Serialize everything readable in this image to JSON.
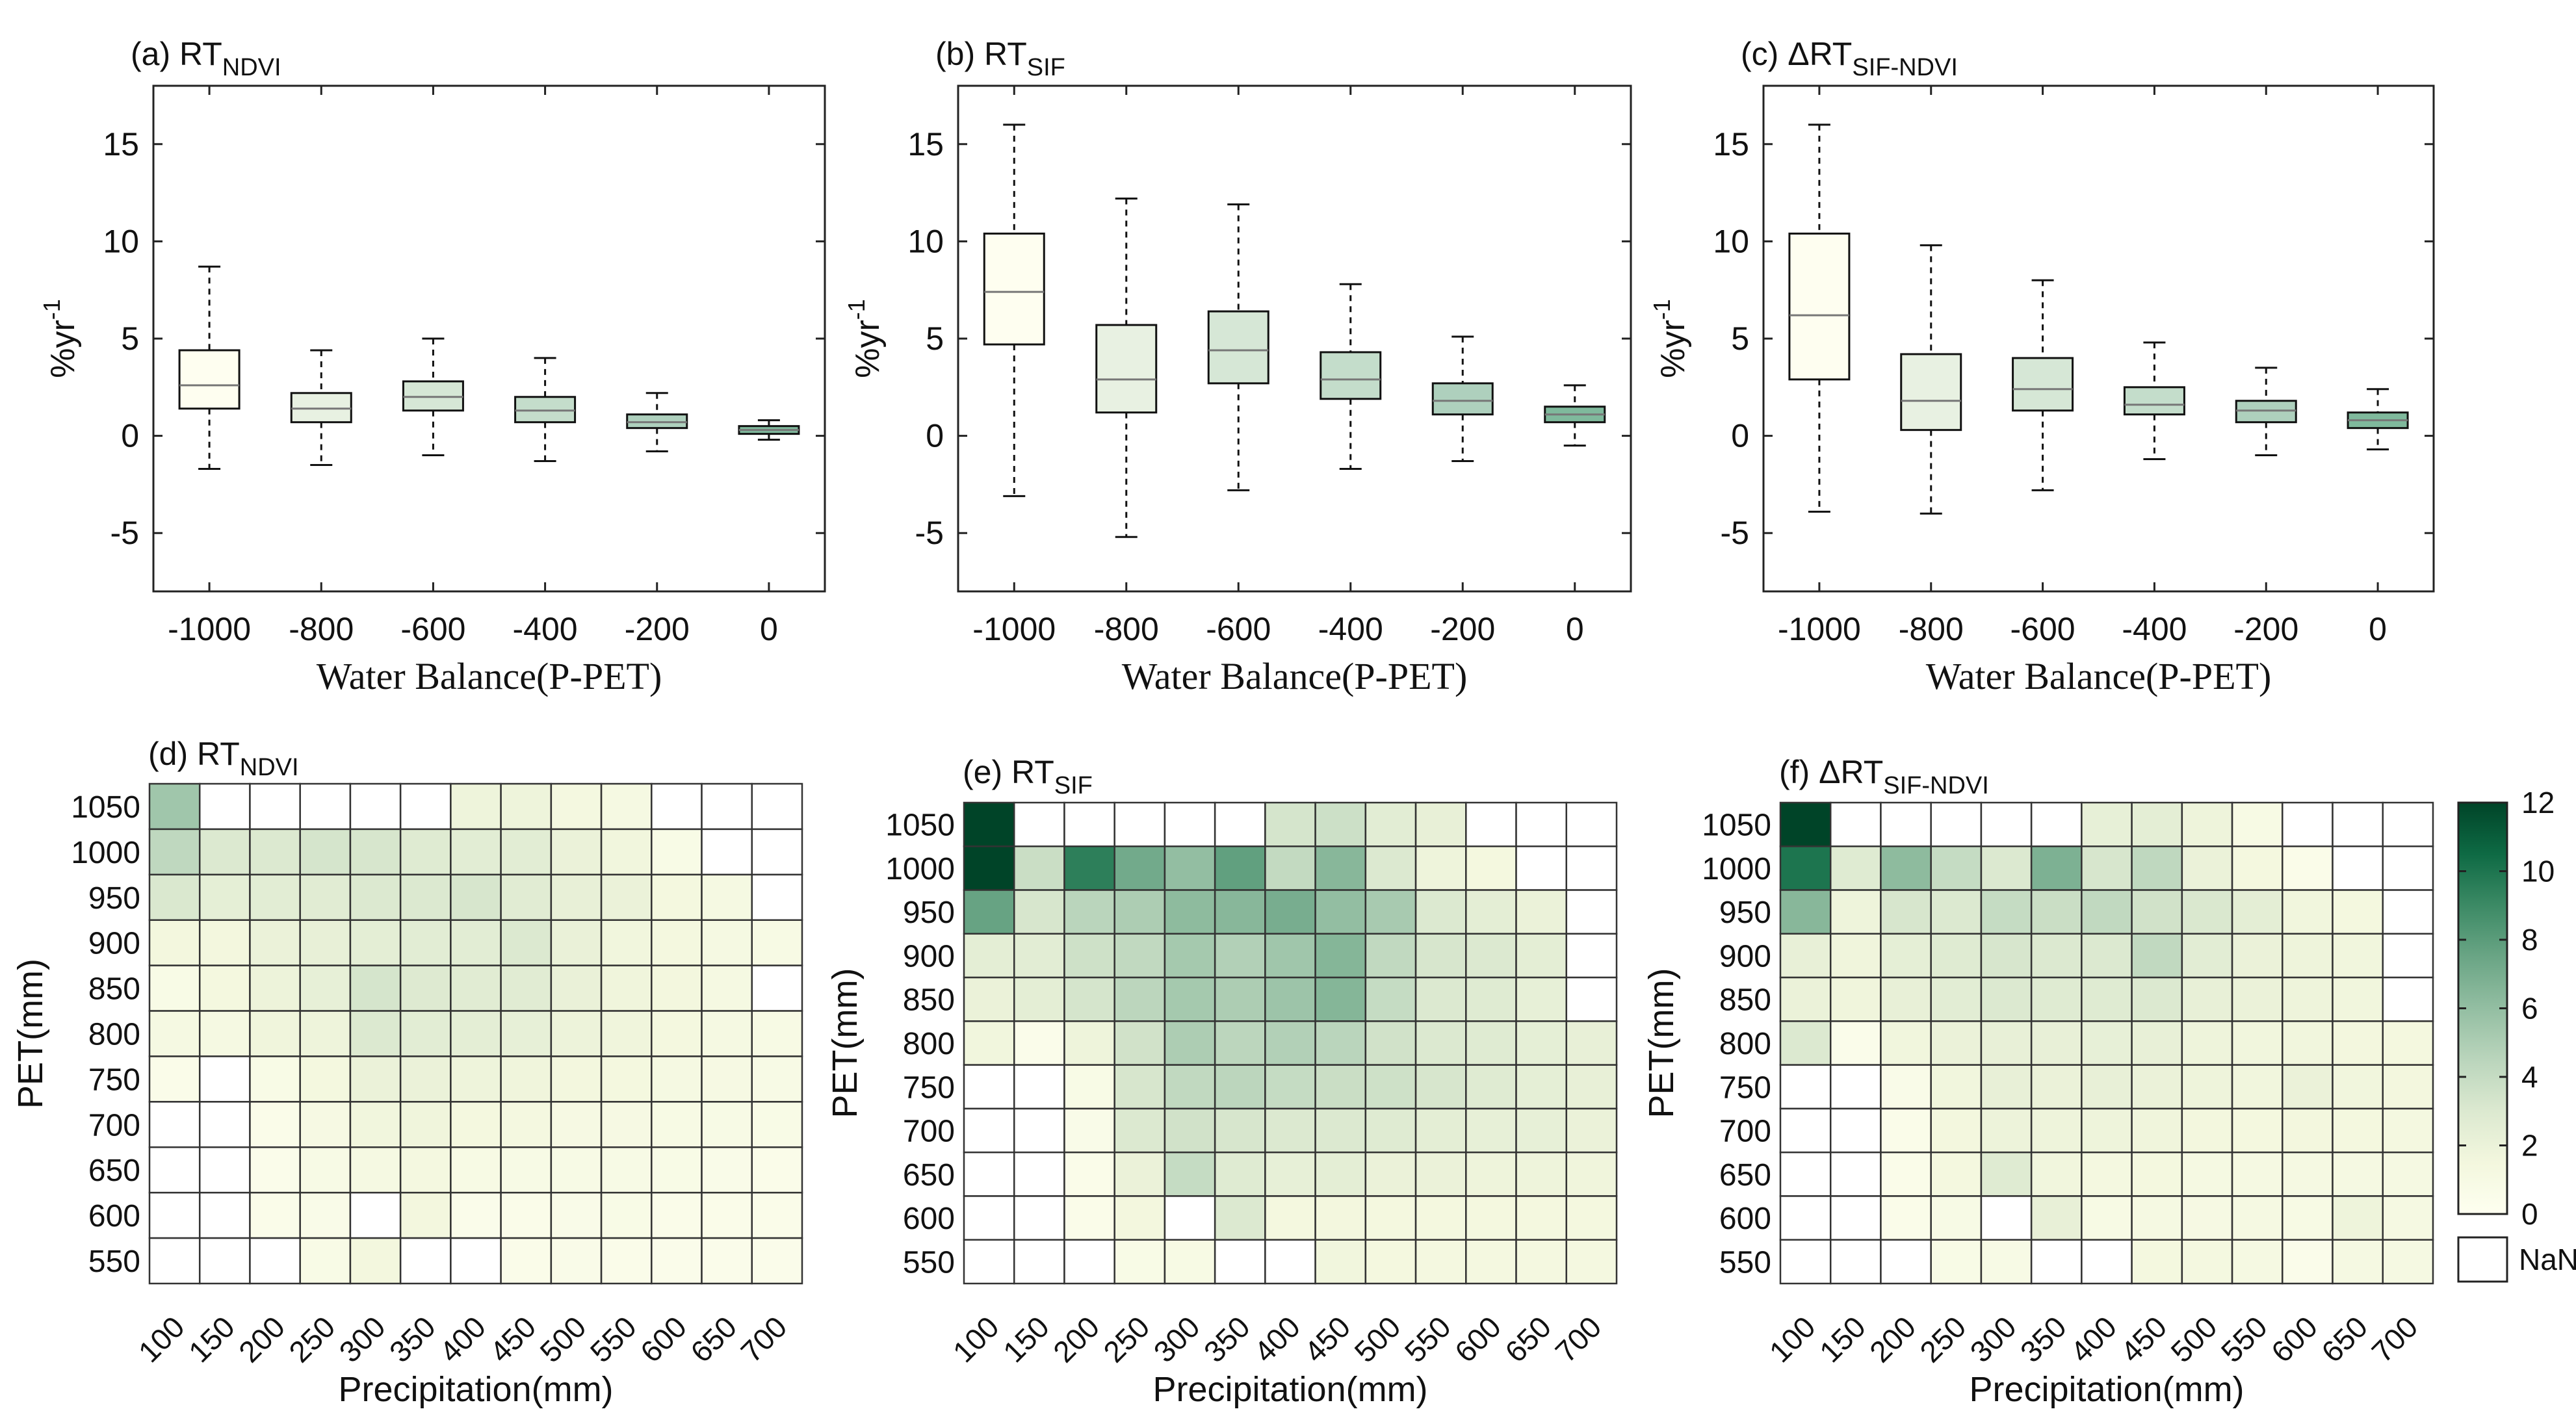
{
  "figure": {
    "colorbar": {
      "ticks": [
        "0",
        "2",
        "4",
        "6",
        "8",
        "10",
        "12"
      ],
      "nan_label": "NaN",
      "colors": [
        "#fefff0",
        "#f3f7de",
        "#dce9d0",
        "#bad5bc",
        "#93bea2",
        "#6aa585",
        "#3c8a65",
        "#0e6a44",
        "#004428"
      ]
    },
    "box_color_ramp": [
      "#fefef0",
      "#e8f1e2",
      "#d6e7d6",
      "#c4ddcb",
      "#aed0bd",
      "#7fb99c"
    ]
  },
  "chart_data": [
    {
      "id": "a",
      "type": "box",
      "title_prefix": "(a) RT",
      "title_sub": "NDVI",
      "xlabel": "Water Balance(P-PET)",
      "ylabel_base": "%yr",
      "ylabel_sup": "-1",
      "categories": [
        "-1000",
        "-800",
        "-600",
        "-400",
        "-200",
        "0"
      ],
      "ylim": [
        -8,
        18
      ],
      "yticks": [
        "-5",
        "0",
        "5",
        "10",
        "15"
      ],
      "boxes": [
        {
          "min": -1.7,
          "q1": 1.4,
          "median": 2.6,
          "q3": 4.4,
          "max": 8.7
        },
        {
          "min": -1.5,
          "q1": 0.7,
          "median": 1.4,
          "q3": 2.2,
          "max": 4.4
        },
        {
          "min": -1.0,
          "q1": 1.3,
          "median": 2.0,
          "q3": 2.8,
          "max": 5.0
        },
        {
          "min": -1.3,
          "q1": 0.7,
          "median": 1.3,
          "q3": 2.0,
          "max": 4.0
        },
        {
          "min": -0.8,
          "q1": 0.4,
          "median": 0.7,
          "q3": 1.1,
          "max": 2.2
        },
        {
          "min": -0.2,
          "q1": 0.1,
          "median": 0.3,
          "q3": 0.5,
          "max": 0.8
        }
      ]
    },
    {
      "id": "b",
      "type": "box",
      "title_prefix": "(b) RT",
      "title_sub": "SIF",
      "xlabel": "Water Balance(P-PET)",
      "ylabel_base": "%yr",
      "ylabel_sup": "-1",
      "categories": [
        "-1000",
        "-800",
        "-600",
        "-400",
        "-200",
        "0"
      ],
      "ylim": [
        -8,
        18
      ],
      "yticks": [
        "-5",
        "0",
        "5",
        "10",
        "15"
      ],
      "boxes": [
        {
          "min": -3.1,
          "q1": 4.7,
          "median": 7.4,
          "q3": 10.4,
          "max": 16.0
        },
        {
          "min": -5.2,
          "q1": 1.2,
          "median": 2.9,
          "q3": 5.7,
          "max": 12.2
        },
        {
          "min": -2.8,
          "q1": 2.7,
          "median": 4.4,
          "q3": 6.4,
          "max": 11.9
        },
        {
          "min": -1.7,
          "q1": 1.9,
          "median": 2.9,
          "q3": 4.3,
          "max": 7.8
        },
        {
          "min": -1.3,
          "q1": 1.1,
          "median": 1.8,
          "q3": 2.7,
          "max": 5.1
        },
        {
          "min": -0.5,
          "q1": 0.7,
          "median": 1.1,
          "q3": 1.5,
          "max": 2.6
        }
      ]
    },
    {
      "id": "c",
      "type": "box",
      "title_prefix": "(c) ΔRT",
      "title_sub": "SIF-NDVI",
      "xlabel": "Water Balance(P-PET)",
      "ylabel_base": "%yr",
      "ylabel_sup": "-1",
      "categories": [
        "-1000",
        "-800",
        "-600",
        "-400",
        "-200",
        "0"
      ],
      "ylim": [
        -8,
        18
      ],
      "yticks": [
        "-5",
        "0",
        "5",
        "10",
        "15"
      ],
      "boxes": [
        {
          "min": -3.9,
          "q1": 2.9,
          "median": 6.2,
          "q3": 10.4,
          "max": 16.0
        },
        {
          "min": -4.0,
          "q1": 0.3,
          "median": 1.8,
          "q3": 4.2,
          "max": 9.8
        },
        {
          "min": -2.8,
          "q1": 1.3,
          "median": 2.4,
          "q3": 4.0,
          "max": 8.0
        },
        {
          "min": -1.2,
          "q1": 1.1,
          "median": 1.6,
          "q3": 2.5,
          "max": 4.8
        },
        {
          "min": -1.0,
          "q1": 0.7,
          "median": 1.3,
          "q3": 1.8,
          "max": 3.5
        },
        {
          "min": -0.7,
          "q1": 0.4,
          "median": 0.8,
          "q3": 1.2,
          "max": 2.4
        }
      ]
    },
    {
      "id": "d",
      "type": "heatmap",
      "title_prefix": "(d) RT",
      "title_sub": "NDVI",
      "xlabel": "Precipitation(mm)",
      "ylabel": "PET(mm)",
      "x": [
        "100",
        "150",
        "200",
        "250",
        "300",
        "350",
        "400",
        "450",
        "500",
        "550",
        "600",
        "650",
        "700"
      ],
      "y": [
        "1050",
        "1000",
        "950",
        "900",
        "850",
        "800",
        "750",
        "700",
        "650",
        "600",
        "550"
      ],
      "zlim": [
        0,
        12
      ],
      "values": [
        [
          5.5,
          null,
          null,
          null,
          null,
          null,
          1.8,
          1.8,
          1.3,
          1.2,
          null,
          null,
          null
        ],
        [
          4.3,
          3.0,
          3.0,
          3.3,
          3.2,
          2.8,
          2.6,
          2.6,
          2.0,
          1.6,
          0.8,
          null,
          null
        ],
        [
          3.1,
          2.4,
          2.6,
          2.7,
          3.0,
          3.0,
          3.2,
          2.7,
          2.2,
          2.0,
          1.4,
          1.2,
          null
        ],
        [
          1.5,
          1.5,
          2.0,
          2.2,
          2.5,
          2.6,
          2.6,
          3.0,
          2.1,
          1.6,
          1.4,
          1.2,
          1.0
        ],
        [
          0.8,
          1.4,
          1.9,
          2.3,
          3.3,
          2.9,
          2.7,
          2.7,
          2.1,
          1.7,
          1.5,
          1.2,
          null
        ],
        [
          1.2,
          1.2,
          1.7,
          1.8,
          3.0,
          2.6,
          2.5,
          2.3,
          1.9,
          1.7,
          1.4,
          1.2,
          1.0
        ],
        [
          0.6,
          null,
          0.8,
          1.4,
          2.0,
          2.0,
          1.8,
          1.7,
          1.5,
          1.4,
          1.2,
          1.1,
          0.9
        ],
        [
          null,
          null,
          0.6,
          1.1,
          1.6,
          1.7,
          1.4,
          1.3,
          1.1,
          1.1,
          1.0,
          0.9,
          0.8
        ],
        [
          null,
          null,
          0.5,
          0.9,
          1.2,
          1.3,
          1.0,
          0.9,
          0.9,
          0.9,
          0.8,
          0.7,
          0.6
        ],
        [
          null,
          null,
          0.6,
          0.7,
          null,
          1.5,
          0.5,
          0.6,
          0.7,
          0.8,
          0.6,
          0.6,
          0.6
        ],
        [
          null,
          null,
          null,
          0.8,
          1.5,
          null,
          null,
          0.6,
          0.7,
          0.6,
          0.5,
          0.5,
          0.5
        ]
      ]
    },
    {
      "id": "e",
      "type": "heatmap",
      "title_prefix": "(e) RT",
      "title_sub": "SIF",
      "xlabel": "Precipitation(mm)",
      "ylabel": "PET(mm)",
      "x": [
        "100",
        "150",
        "200",
        "250",
        "300",
        "350",
        "400",
        "450",
        "500",
        "550",
        "600",
        "650",
        "700"
      ],
      "y": [
        "1050",
        "1000",
        "950",
        "900",
        "850",
        "800",
        "750",
        "700",
        "650",
        "600",
        "550"
      ],
      "zlim": [
        0,
        12
      ],
      "values": [
        [
          12.0,
          null,
          null,
          null,
          null,
          null,
          3.3,
          3.7,
          2.6,
          2.2,
          null,
          null,
          null
        ],
        [
          12.0,
          3.8,
          9.5,
          7.2,
          6.0,
          7.8,
          4.1,
          6.4,
          3.0,
          1.8,
          1.4,
          null,
          null
        ],
        [
          7.6,
          3.2,
          4.5,
          5.0,
          6.2,
          6.4,
          7.0,
          6.0,
          5.2,
          3.0,
          2.5,
          2.0,
          null
        ],
        [
          2.5,
          2.6,
          3.6,
          4.2,
          5.3,
          4.8,
          5.5,
          6.5,
          4.2,
          3.2,
          3.0,
          2.5,
          null
        ],
        [
          2.0,
          2.5,
          3.3,
          4.4,
          5.3,
          5.0,
          5.6,
          6.5,
          4.0,
          3.0,
          2.8,
          2.3,
          null
        ],
        [
          1.6,
          0.5,
          1.8,
          3.5,
          5.0,
          4.4,
          4.8,
          4.5,
          3.5,
          3.0,
          2.8,
          2.4,
          2.2
        ],
        [
          null,
          null,
          0.8,
          3.2,
          4.2,
          4.4,
          4.0,
          3.8,
          3.6,
          3.2,
          2.8,
          2.4,
          2.2
        ],
        [
          null,
          null,
          0.7,
          3.0,
          3.5,
          3.2,
          3.0,
          3.0,
          2.8,
          2.5,
          2.3,
          2.3,
          2.0
        ],
        [
          null,
          null,
          0.6,
          2.0,
          4.0,
          2.8,
          2.3,
          2.5,
          2.0,
          2.0,
          1.8,
          1.8,
          1.7
        ],
        [
          null,
          null,
          0.6,
          1.5,
          null,
          3.0,
          1.4,
          1.5,
          1.4,
          1.4,
          1.4,
          1.4,
          1.4
        ],
        [
          null,
          null,
          null,
          0.8,
          1.0,
          null,
          null,
          1.6,
          1.4,
          1.3,
          1.3,
          1.3,
          1.3
        ]
      ]
    },
    {
      "id": "f",
      "type": "heatmap",
      "title_prefix": "(f) ΔRT",
      "title_sub": "SIF-NDVI",
      "xlabel": "Precipitation(mm)",
      "ylabel": "PET(mm)",
      "x": [
        "100",
        "150",
        "200",
        "250",
        "300",
        "350",
        "400",
        "450",
        "500",
        "550",
        "600",
        "650",
        "700"
      ],
      "y": [
        "1050",
        "1000",
        "950",
        "900",
        "850",
        "800",
        "750",
        "700",
        "650",
        "600",
        "550"
      ],
      "zlim": [
        0,
        12
      ],
      "values": [
        [
          12.0,
          null,
          null,
          null,
          null,
          null,
          2.3,
          2.5,
          1.8,
          1.0,
          null,
          null,
          null
        ],
        [
          10.0,
          2.8,
          6.2,
          4.0,
          3.0,
          6.8,
          3.2,
          4.3,
          2.0,
          1.4,
          0.6,
          null,
          null
        ],
        [
          6.4,
          1.8,
          3.2,
          3.0,
          4.0,
          3.8,
          4.2,
          3.5,
          3.1,
          2.5,
          1.6,
          1.4,
          null
        ],
        [
          2.2,
          1.7,
          2.4,
          2.8,
          3.2,
          3.0,
          3.0,
          4.2,
          2.6,
          2.0,
          1.8,
          1.6,
          null
        ],
        [
          2.0,
          1.7,
          2.2,
          2.6,
          3.0,
          2.8,
          2.8,
          3.0,
          2.2,
          2.0,
          1.8,
          1.6,
          null
        ],
        [
          3.0,
          0.5,
          1.6,
          2.0,
          2.2,
          2.2,
          2.3,
          2.2,
          1.8,
          1.6,
          1.6,
          1.5,
          1.4
        ],
        [
          null,
          null,
          0.7,
          1.6,
          2.2,
          2.0,
          2.2,
          2.0,
          1.8,
          1.6,
          2.0,
          1.6,
          1.5
        ],
        [
          null,
          null,
          0.6,
          1.5,
          1.9,
          1.8,
          1.8,
          1.7,
          1.5,
          1.4,
          1.5,
          1.4,
          1.3
        ],
        [
          null,
          null,
          0.6,
          1.4,
          2.8,
          1.6,
          1.3,
          1.4,
          1.2,
          1.2,
          1.2,
          1.2,
          1.2
        ],
        [
          null,
          null,
          0.6,
          0.9,
          null,
          2.2,
          1.0,
          1.2,
          1.1,
          1.2,
          1.0,
          1.8,
          1.2
        ],
        [
          null,
          null,
          null,
          0.8,
          0.9,
          null,
          null,
          1.4,
          1.3,
          1.2,
          0.5,
          1.2,
          1.2
        ]
      ]
    }
  ]
}
